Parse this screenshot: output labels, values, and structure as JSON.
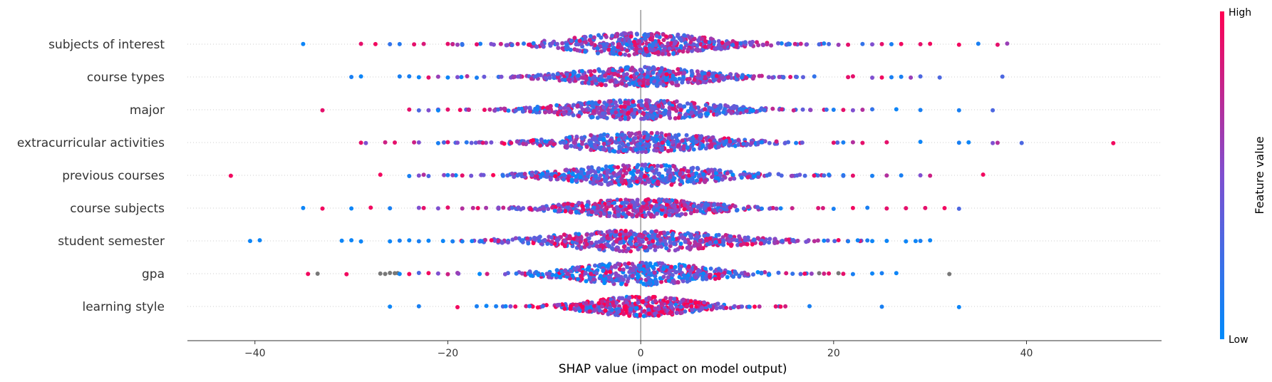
{
  "chart_data": {
    "type": "scatter",
    "subtype": "shap-beeswarm-summary",
    "title": "",
    "xlabel": "SHAP value (impact on model output)",
    "ylabel": "",
    "xlim": [
      -47,
      54
    ],
    "xticks": [
      {
        "value": -40,
        "label": "−40"
      },
      {
        "value": -20,
        "label": "−20"
      },
      {
        "value": 0,
        "label": "0"
      },
      {
        "value": 20,
        "label": "20"
      },
      {
        "value": 40,
        "label": "40"
      }
    ],
    "grid": false,
    "zero_line": true,
    "colors": {
      "low": "#008bfb",
      "mid": "#7f4fd0",
      "high": "#ff0052",
      "missing": "#777777"
    },
    "colorbar": {
      "title": "Feature value",
      "high_label": "High",
      "low_label": "Low",
      "placement": "right"
    },
    "features": [
      {
        "name": "subjects of interest",
        "outliers": [
          [
            -35.0,
            0.05
          ],
          [
            -29.0,
            0.9
          ],
          [
            -27.5,
            0.95
          ],
          [
            -26.0,
            0.2
          ],
          [
            -25.0,
            0.15
          ],
          [
            -23.5,
            0.9
          ],
          [
            -22.5,
            0.85
          ],
          [
            -20.0,
            0.9
          ],
          [
            -19.0,
            0.6
          ],
          [
            -18.5,
            0.2
          ],
          [
            -17.0,
            0.9
          ],
          [
            -15.5,
            0.5
          ],
          [
            -14.5,
            0.8
          ],
          [
            16.0,
            0.8
          ],
          [
            18.5,
            0.3
          ],
          [
            19.0,
            0.1
          ],
          [
            20.5,
            0.6
          ],
          [
            21.5,
            0.9
          ],
          [
            23.0,
            0.2
          ],
          [
            24.0,
            0.5
          ],
          [
            25.0,
            0.9
          ],
          [
            26.0,
            0.1
          ],
          [
            27.0,
            0.95
          ],
          [
            29.0,
            0.9
          ],
          [
            30.0,
            0.95
          ],
          [
            33.0,
            0.95
          ],
          [
            35.0,
            0.1
          ],
          [
            37.0,
            0.9
          ],
          [
            38.0,
            0.6
          ]
        ],
        "core": {
          "center": 0,
          "sigma": 6.5,
          "count": 520,
          "maxHeight": 16,
          "centralValue": 0.55
        }
      },
      {
        "name": "course types",
        "outliers": [
          [
            -30.0,
            0.1
          ],
          [
            -29.0,
            0.05
          ],
          [
            -25.0,
            0.1
          ],
          [
            -24.0,
            0.1
          ],
          [
            -23.0,
            0.05
          ],
          [
            -22.0,
            0.9
          ],
          [
            -21.0,
            0.6
          ],
          [
            -20.0,
            0.05
          ],
          [
            -19.0,
            0.5
          ],
          [
            -18.0,
            0.7
          ],
          [
            -17.0,
            0.1
          ],
          [
            18.0,
            0.2
          ],
          [
            21.5,
            0.9
          ],
          [
            22.0,
            0.9
          ],
          [
            24.0,
            0.5
          ],
          [
            25.0,
            0.95
          ],
          [
            26.0,
            0.1
          ],
          [
            27.0,
            0.1
          ],
          [
            28.0,
            0.6
          ],
          [
            29.0,
            0.3
          ],
          [
            31.0,
            0.3
          ],
          [
            37.5,
            0.3
          ]
        ],
        "core": {
          "center": 0,
          "sigma": 6.2,
          "count": 480,
          "maxHeight": 14,
          "centralValue": 0.45
        }
      },
      {
        "name": "major",
        "outliers": [
          [
            -33.0,
            0.9
          ],
          [
            -24.0,
            0.9
          ],
          [
            -23.0,
            0.3
          ],
          [
            -22.0,
            0.5
          ],
          [
            -21.0,
            0.05
          ],
          [
            -20.0,
            0.9
          ],
          [
            20.0,
            0.1
          ],
          [
            21.0,
            0.9
          ],
          [
            22.0,
            0.5
          ],
          [
            23.0,
            0.7
          ],
          [
            24.0,
            0.2
          ],
          [
            26.5,
            0.05
          ],
          [
            29.0,
            0.1
          ],
          [
            33.0,
            0.1
          ],
          [
            36.5,
            0.3
          ]
        ],
        "core": {
          "center": 0,
          "sigma": 7.0,
          "count": 520,
          "maxHeight": 14,
          "centralValue": 0.5
        }
      },
      {
        "name": "extracurricular activities",
        "outliers": [
          [
            -29.0,
            0.9
          ],
          [
            -28.5,
            0.5
          ],
          [
            -26.5,
            0.8
          ],
          [
            -25.5,
            0.9
          ],
          [
            -23.5,
            0.8
          ],
          [
            -23.0,
            0.5
          ],
          [
            -21.0,
            0.1
          ],
          [
            -20.0,
            0.9
          ],
          [
            -19.0,
            0.5
          ],
          [
            20.0,
            0.9
          ],
          [
            21.0,
            0.1
          ],
          [
            22.0,
            0.7
          ],
          [
            23.0,
            0.9
          ],
          [
            25.5,
            0.9
          ],
          [
            29.0,
            0.05
          ],
          [
            33.0,
            0.1
          ],
          [
            34.0,
            0.05
          ],
          [
            36.5,
            0.5
          ],
          [
            37.0,
            0.7
          ],
          [
            39.5,
            0.3
          ],
          [
            49.0,
            0.95
          ]
        ],
        "core": {
          "center": 0,
          "sigma": 6.8,
          "count": 520,
          "maxHeight": 14,
          "centralValue": 0.4
        }
      },
      {
        "name": "previous courses",
        "outliers": [
          [
            -42.5,
            0.95
          ],
          [
            -27.0,
            0.95
          ],
          [
            -24.0,
            0.1
          ],
          [
            -23.0,
            0.5
          ],
          [
            -22.5,
            0.7
          ],
          [
            -22.0,
            0.3
          ],
          [
            -20.0,
            0.1
          ],
          [
            -19.5,
            0.6
          ],
          [
            -18.5,
            0.9
          ],
          [
            19.5,
            0.1
          ],
          [
            21.0,
            0.2
          ],
          [
            22.0,
            0.9
          ],
          [
            24.0,
            0.1
          ],
          [
            25.5,
            0.7
          ],
          [
            27.0,
            0.1
          ],
          [
            29.0,
            0.5
          ],
          [
            30.0,
            0.8
          ],
          [
            35.5,
            0.95
          ]
        ],
        "core": {
          "center": 0,
          "sigma": 7.0,
          "count": 520,
          "maxHeight": 15,
          "centralValue": 0.3
        }
      },
      {
        "name": "course subjects",
        "outliers": [
          [
            -35.0,
            0.05
          ],
          [
            -33.0,
            0.95
          ],
          [
            -30.0,
            0.05
          ],
          [
            -28.0,
            0.95
          ],
          [
            -26.0,
            0.1
          ],
          [
            -23.0,
            0.5
          ],
          [
            -22.5,
            0.9
          ],
          [
            -21.0,
            0.5
          ],
          [
            -20.0,
            0.9
          ],
          [
            -18.5,
            0.7
          ],
          [
            20.0,
            0.1
          ],
          [
            22.0,
            0.95
          ],
          [
            23.5,
            0.1
          ],
          [
            25.5,
            0.9
          ],
          [
            27.5,
            0.9
          ],
          [
            29.5,
            0.9
          ],
          [
            31.5,
            0.95
          ],
          [
            33.0,
            0.3
          ]
        ],
        "core": {
          "center": 0,
          "sigma": 6.3,
          "count": 480,
          "maxHeight": 13,
          "centralValue": 0.6
        }
      },
      {
        "name": "student semester",
        "outliers": [
          [
            -40.5,
            0.05
          ],
          [
            -39.5,
            0.05
          ],
          [
            -31.0,
            0.05
          ],
          [
            -30.0,
            0.05
          ],
          [
            -29.0,
            0.05
          ],
          [
            -26.0,
            0.05
          ],
          [
            -25.0,
            0.1
          ],
          [
            -24.0,
            0.05
          ],
          [
            -23.0,
            0.1
          ],
          [
            -22.0,
            0.05
          ],
          [
            -20.5,
            0.05
          ],
          [
            -19.5,
            0.1
          ],
          [
            -18.5,
            0.1
          ],
          [
            -17.5,
            0.05
          ],
          [
            -16.5,
            0.1
          ],
          [
            19.0,
            0.05
          ],
          [
            20.5,
            0.95
          ],
          [
            21.5,
            0.1
          ],
          [
            22.5,
            0.05
          ],
          [
            23.5,
            0.1
          ],
          [
            24.0,
            0.05
          ],
          [
            25.5,
            0.05
          ],
          [
            27.5,
            0.05
          ],
          [
            28.5,
            0.05
          ],
          [
            29.0,
            0.1
          ],
          [
            30.0,
            0.05
          ]
        ],
        "core": {
          "center": 0,
          "sigma": 8.0,
          "count": 540,
          "maxHeight": 15,
          "centralValue": 0.6
        }
      },
      {
        "name": "gpa",
        "outliers": [
          [
            -34.5,
            0.95
          ],
          [
            -33.5,
            -1
          ],
          [
            -30.5,
            0.95
          ],
          [
            -27.0,
            -1
          ],
          [
            -26.5,
            -1
          ],
          [
            -26.0,
            -1
          ],
          [
            -25.5,
            -1
          ],
          [
            -25.2,
            -1
          ],
          [
            -25.0,
            0.05
          ],
          [
            -24.0,
            0.95
          ],
          [
            -23.0,
            0.3
          ],
          [
            -22.0,
            0.95
          ],
          [
            -21.0,
            0.5
          ],
          [
            -20.0,
            0.8
          ],
          [
            -19.0,
            0.6
          ],
          [
            17.0,
            0.95
          ],
          [
            18.5,
            -1
          ],
          [
            19.0,
            0.8
          ],
          [
            19.5,
            0.9
          ],
          [
            20.5,
            -1
          ],
          [
            21.0,
            0.9
          ],
          [
            22.0,
            0.1
          ],
          [
            24.0,
            0.05
          ],
          [
            25.0,
            0.1
          ],
          [
            26.5,
            0.05
          ],
          [
            32.0,
            -1
          ]
        ],
        "core": {
          "center": 0,
          "sigma": 6.3,
          "count": 480,
          "maxHeight": 16,
          "centralValue": 0.25
        }
      },
      {
        "name": "learning style",
        "outliers": [
          [
            -26.0,
            0.05
          ],
          [
            -23.0,
            0.1
          ],
          [
            -19.0,
            0.95
          ],
          [
            -17.0,
            0.1
          ],
          [
            -16.0,
            0.05
          ],
          [
            -15.0,
            0.1
          ],
          [
            -14.0,
            0.05
          ],
          [
            -13.5,
            0.5
          ],
          [
            -13.0,
            0.95
          ],
          [
            14.0,
            0.9
          ],
          [
            14.5,
            0.95
          ],
          [
            17.5,
            0.1
          ],
          [
            25.0,
            0.1
          ],
          [
            33.0,
            0.05
          ]
        ],
        "core": {
          "center": 0,
          "sigma": 5.0,
          "count": 440,
          "maxHeight": 14,
          "centralValue": 0.85
        }
      }
    ]
  }
}
